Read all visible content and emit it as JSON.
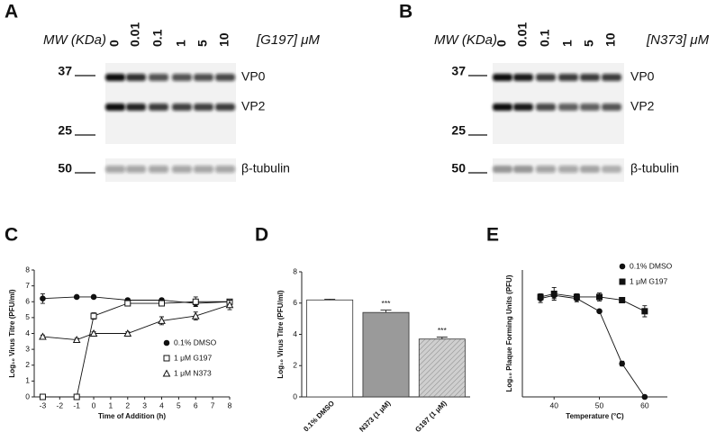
{
  "blots": [
    {
      "panel": "A",
      "mw_label": "MW (KDa)",
      "lanes": [
        "0",
        "0.01",
        "0.1",
        "1",
        "5",
        "10"
      ],
      "treatment": "[G197] μM",
      "markers": [
        "37",
        "25",
        "50"
      ],
      "bands": [
        "VP0",
        "VP2",
        "β-tubulin"
      ]
    },
    {
      "panel": "B",
      "mw_label": "MW (KDa)",
      "lanes": [
        "0",
        "0.01",
        "0.1",
        "1",
        "5",
        "10"
      ],
      "treatment": "[N373] μM",
      "markers": [
        "37",
        "25",
        "50"
      ],
      "bands": [
        "VP0",
        "VP2",
        "β-tubulin"
      ]
    }
  ],
  "chart_data": [
    {
      "panel": "C",
      "type": "line",
      "xlabel": "Time of Addition (h)",
      "ylabel": "Log₁₀ Virus Titre (PFU/ml)",
      "x": [
        -3,
        -1,
        0,
        2,
        4,
        6,
        8
      ],
      "xlim": [
        -3.5,
        8
      ],
      "xticks": [
        -3,
        -2,
        -1,
        0,
        1,
        2,
        3,
        4,
        5,
        6,
        7,
        8
      ],
      "ylim": [
        0,
        8
      ],
      "yticks": [
        0,
        1,
        2,
        3,
        4,
        5,
        6,
        7,
        8
      ],
      "legend": "bottom-right",
      "series": [
        {
          "name": "0.1% DMSO",
          "color": "#111111",
          "marker": "filled-circle",
          "values": [
            6.2,
            6.3,
            6.3,
            6.1,
            6.1,
            5.9,
            6.0
          ],
          "errors": [
            0.3,
            0.05,
            0.05,
            0.1,
            0.1,
            0.2,
            0.15
          ]
        },
        {
          "name": "1 μM G197",
          "color": "#111111",
          "marker": "open-square",
          "values": [
            0,
            0,
            5.1,
            5.9,
            5.9,
            6.0,
            6.0
          ],
          "errors": [
            0.05,
            0.05,
            0.2,
            0.1,
            0.1,
            0.3,
            0.15
          ]
        },
        {
          "name": "1 μM N373",
          "color": "#111111",
          "marker": "open-triangle",
          "values": [
            3.8,
            3.6,
            4.0,
            4.0,
            4.8,
            5.1,
            5.8
          ],
          "errors": [
            0.1,
            0.1,
            0.1,
            0.1,
            0.25,
            0.25,
            0.3
          ]
        }
      ]
    },
    {
      "panel": "D",
      "type": "bar",
      "ylabel": "Log₁₀ Virus Titre (PFU/ml)",
      "categories": [
        "0.1% DMSO",
        "N373 (1 μM)",
        "G197 (1 μM)"
      ],
      "values": [
        6.2,
        5.4,
        3.7
      ],
      "errors": [
        0.05,
        0.15,
        0.12
      ],
      "colors": [
        "#ffffff",
        "#9a9a9a",
        "#c8c8c8"
      ],
      "hatch": [
        false,
        false,
        true
      ],
      "annotations": [
        {
          "category": "N373 (1 μM)",
          "text": "***"
        },
        {
          "category": "G197 (1 μM)",
          "text": "***"
        }
      ],
      "ylim": [
        0,
        8
      ],
      "yticks": [
        0,
        2,
        4,
        6,
        8
      ]
    },
    {
      "panel": "E",
      "type": "line",
      "xlabel": "Temperature (°C)",
      "ylabel": "Log₁₀ Plaque Forming Units (PFU)",
      "x": [
        37,
        40,
        45,
        50,
        55,
        60
      ],
      "xlim": [
        33,
        65
      ],
      "xticks": [
        40,
        50,
        60
      ],
      "ylim": [
        0,
        8
      ],
      "legend": "top-right",
      "series": [
        {
          "name": "0.1% DMSO",
          "color": "#111111",
          "marker": "filled-circle",
          "values": [
            6.2,
            6.4,
            6.2,
            5.4,
            2.1,
            0
          ],
          "errors": [
            0.25,
            0.2,
            0.2,
            0.1,
            0.15,
            0
          ]
        },
        {
          "name": "1 μM G197",
          "color": "#111111",
          "marker": "filled-square",
          "values": [
            6.3,
            6.5,
            6.3,
            6.3,
            6.1,
            5.4
          ],
          "errors": [
            0.2,
            0.4,
            0.2,
            0.25,
            0.1,
            0.35
          ]
        }
      ]
    }
  ]
}
